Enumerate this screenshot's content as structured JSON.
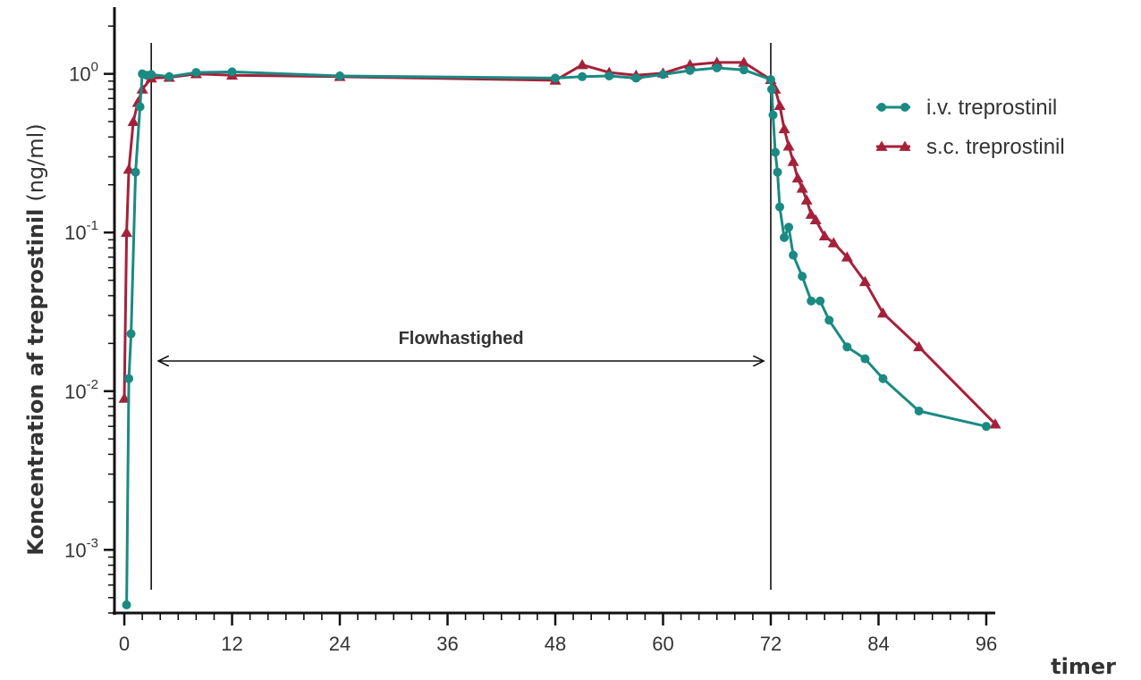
{
  "chart_data": {
    "type": "line",
    "title": "",
    "xlabel": "timer",
    "ylabel_bold": "Koncentration af treprostinil",
    "ylabel_unit": "(ng/ml)",
    "y_scale": "log",
    "xlim": [
      -1,
      97
    ],
    "ylim": [
      0.0004,
      2.5
    ],
    "x_ticks": [
      0,
      12,
      24,
      36,
      48,
      60,
      72,
      84,
      96
    ],
    "y_ticks": [
      {
        "value": 0.001,
        "base": "10",
        "exp": "-3"
      },
      {
        "value": 0.01,
        "base": "10",
        "exp": "-2"
      },
      {
        "value": 0.1,
        "base": "10",
        "exp": "-1"
      },
      {
        "value": 1,
        "base": "10",
        "exp": "0"
      }
    ],
    "grid": false,
    "legend_position": "top-right",
    "annotation": {
      "text": "Flowhastighed",
      "x_start": 3,
      "x_end": 72
    },
    "vertical_lines": [
      3,
      72
    ],
    "series": [
      {
        "name": "i.v. treprostinil",
        "color": "#1a8a83",
        "marker": "circle",
        "x": [
          0.25,
          0.5,
          0.75,
          1.25,
          1.75,
          2.0,
          2.5,
          3.0,
          5.0,
          8.0,
          12.0,
          24.0,
          48.0,
          51.0,
          54.0,
          57.0,
          60.0,
          63.0,
          66.0,
          69.0,
          72.0,
          72.1,
          72.25,
          72.5,
          72.75,
          73.0,
          73.5,
          74.0,
          74.5,
          75.5,
          76.5,
          77.5,
          78.5,
          80.5,
          82.5,
          84.5,
          88.5,
          96.0
        ],
        "y": [
          0.00045,
          0.012,
          0.023,
          0.24,
          0.62,
          1.0,
          0.98,
          0.99,
          0.96,
          1.02,
          1.03,
          0.97,
          0.94,
          0.96,
          0.97,
          0.94,
          0.99,
          1.05,
          1.09,
          1.06,
          0.92,
          0.8,
          0.55,
          0.32,
          0.24,
          0.145,
          0.093,
          0.108,
          0.072,
          0.053,
          0.037,
          0.037,
          0.028,
          0.019,
          0.016,
          0.012,
          0.0075,
          0.006
        ]
      },
      {
        "name": "s.c. treprostinil",
        "color": "#a5213a",
        "marker": "triangle",
        "x": [
          0.0,
          0.25,
          0.5,
          1.0,
          1.5,
          2.0,
          3.0,
          5.0,
          8.0,
          12.0,
          24.0,
          48.0,
          51.0,
          54.0,
          57.0,
          60.0,
          63.0,
          66.0,
          69.0,
          72.0,
          72.5,
          73.0,
          73.5,
          74.0,
          74.5,
          75.0,
          75.5,
          76.0,
          76.5,
          77.0,
          78.0,
          79.0,
          80.5,
          82.5,
          84.5,
          88.5,
          97.0
        ],
        "y": [
          0.009,
          0.1,
          0.25,
          0.5,
          0.66,
          0.8,
          0.94,
          0.95,
          1.0,
          0.98,
          0.96,
          0.91,
          1.14,
          1.02,
          0.98,
          1.01,
          1.14,
          1.18,
          1.18,
          0.92,
          0.8,
          0.63,
          0.45,
          0.35,
          0.28,
          0.22,
          0.19,
          0.16,
          0.13,
          0.12,
          0.095,
          0.086,
          0.07,
          0.049,
          0.031,
          0.019,
          0.0062
        ]
      }
    ]
  }
}
